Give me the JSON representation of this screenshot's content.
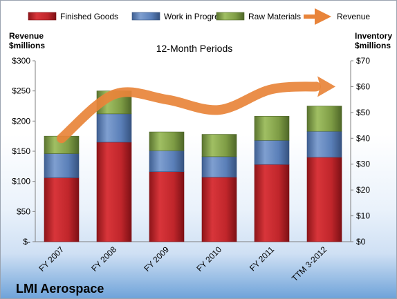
{
  "chart_data": {
    "type": "bar",
    "stacked": true,
    "title": "12-Month Periods",
    "categories": [
      "FY 2007",
      "FY 2008",
      "FY 2009",
      "FY 2010",
      "FY 2011",
      "TTM 3-2012"
    ],
    "series": [
      {
        "name": "Finished Goods",
        "color": "#c0262b",
        "values": [
          106,
          165,
          116,
          107,
          128,
          140
        ]
      },
      {
        "name": "Work in Progress",
        "color": "#5a7fb8",
        "values": [
          40,
          47,
          35,
          34,
          40,
          43
        ]
      },
      {
        "name": "Raw Materials",
        "color": "#7e9c45",
        "values": [
          29,
          38,
          31,
          37,
          40,
          42
        ]
      }
    ],
    "line_series": {
      "name": "Revenue",
      "color": "#e8843a",
      "values": [
        40,
        57,
        55,
        51,
        59,
        60
      ]
    },
    "left_axis": {
      "title_line1": "Revenue",
      "title_line2": "$millions",
      "ylim": [
        0,
        300
      ],
      "ticks": [
        0,
        50,
        100,
        150,
        200,
        250,
        300
      ],
      "tick_labels": [
        "$-",
        "$50",
        "$100",
        "$150",
        "$200",
        "$250",
        "$300"
      ]
    },
    "right_axis": {
      "title_line1": "Inventory",
      "title_line2": "$millions",
      "ylim": [
        0,
        70
      ],
      "ticks": [
        0,
        10,
        20,
        30,
        40,
        50,
        60,
        70
      ],
      "tick_labels": [
        "$0",
        "$10",
        "$20",
        "$30",
        "$40",
        "$50",
        "$60",
        "$70"
      ]
    },
    "legend_position": "top",
    "grid": false
  },
  "company_name": "LMI Aerospace"
}
